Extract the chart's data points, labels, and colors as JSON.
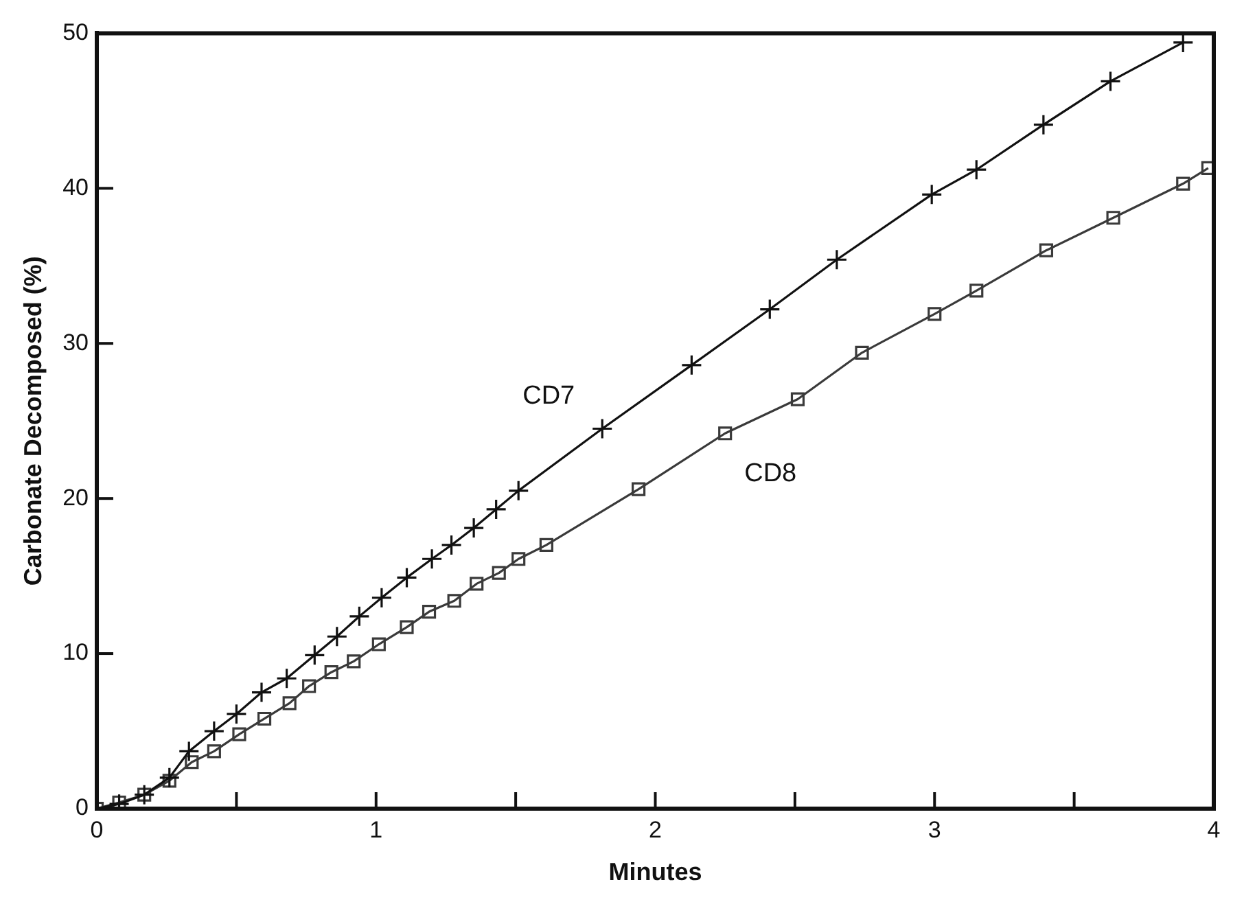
{
  "chart_data": {
    "type": "line",
    "xlabel": "Minutes",
    "ylabel": "Carbonate Decomposed (%)",
    "xlim": [
      0,
      4
    ],
    "xticks": [
      0,
      {
        "value": 0.5,
        "label": null
      },
      1,
      {
        "value": 1.5,
        "label": null
      },
      2,
      {
        "value": 2.5,
        "label": null
      },
      3,
      {
        "value": 3.5,
        "label": null
      },
      4
    ],
    "ylim": [
      0,
      50
    ],
    "yticks": [
      0,
      10,
      20,
      30,
      40,
      50
    ],
    "grid": false,
    "line_style": "solid",
    "series": [
      {
        "name": "CD7",
        "color": "#111111",
        "marker": "cross",
        "x": [
          0,
          0.08,
          0.17,
          0.26,
          0.33,
          0.42,
          0.5,
          0.59,
          0.68,
          0.78,
          0.86,
          0.94,
          1.02,
          1.11,
          1.2,
          1.27,
          1.35,
          1.43,
          1.51,
          1.81,
          2.13,
          2.41,
          2.65,
          2.99,
          3.15,
          3.39,
          3.63,
          3.89
        ],
        "values": [
          0,
          0.3,
          0.9,
          2.0,
          3.7,
          5.0,
          6.1,
          7.5,
          8.4,
          9.9,
          11.1,
          12.4,
          13.6,
          14.9,
          16.1,
          17.0,
          18.1,
          19.3,
          20.5,
          24.5,
          28.6,
          32.2,
          35.4,
          39.6,
          41.2,
          44.1,
          46.9,
          49.4
        ]
      },
      {
        "name": "CD8",
        "color": "#3a3a3a",
        "marker": "square",
        "x": [
          0,
          0.08,
          0.17,
          0.26,
          0.34,
          0.42,
          0.51,
          0.6,
          0.69,
          0.76,
          0.84,
          0.92,
          1.01,
          1.11,
          1.19,
          1.28,
          1.36,
          1.44,
          1.51,
          1.61,
          1.94,
          2.25,
          2.51,
          2.74,
          3.0,
          3.15,
          3.4,
          3.64,
          3.89,
          3.98
        ],
        "values": [
          0,
          0.4,
          0.9,
          1.8,
          3.0,
          3.7,
          4.8,
          5.8,
          6.8,
          7.9,
          8.8,
          9.5,
          10.6,
          11.7,
          12.7,
          13.4,
          14.5,
          15.2,
          16.1,
          17.0,
          20.6,
          24.2,
          26.4,
          29.4,
          31.9,
          33.4,
          36.0,
          38.1,
          40.3,
          41.3
        ]
      }
    ]
  }
}
